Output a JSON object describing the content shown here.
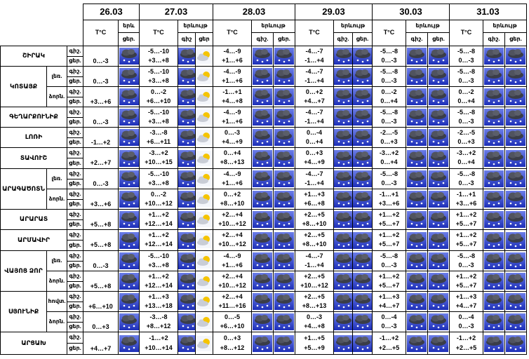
{
  "header": {
    "dates": [
      "26.03",
      "27.03",
      "28.03",
      "29.03",
      "30.03",
      "31.03"
    ],
    "temp_label": "T°C",
    "phenomenon": [
      "երև",
      "երևույթ",
      "երևույթ",
      "երևույթ",
      "երևույթ",
      "երևույթ"
    ],
    "icon_labels": [
      [
        "ցեր."
      ],
      [
        "գիշ",
        "ցեր"
      ],
      [
        "գիշ.",
        "ցեր."
      ],
      [
        "գիշ.",
        "ցեր."
      ],
      [
        "գիշ.",
        "ցեր."
      ],
      [
        "գիշ.",
        "ցեր."
      ]
    ]
  },
  "row_labels": [
    "գիշ.",
    "ցեր."
  ],
  "regions": [
    {
      "name": "ՇԻՐԱԿ",
      "zones": [
        {
          "today": "0…-3",
          "forecast": [
            [
              "-5…-10",
              "+3…+8"
            ],
            [
              "-4…-9",
              "+1…+6"
            ],
            [
              "-4…-7",
              "-1…+4"
            ],
            [
              "-5…-8",
              "0…-3"
            ],
            [
              "-5…-8",
              "0…-3"
            ]
          ]
        }
      ]
    },
    {
      "name": "ԿՈՏԱՅՔ",
      "zones": [
        {
          "label": "լեռ.",
          "today": "0…-3",
          "forecast": [
            [
              "-5…-10",
              "+3…+8"
            ],
            [
              "-4…-9",
              "+1…+6"
            ],
            [
              "-4…-7",
              "-1…+4"
            ],
            [
              "-5…-8",
              "0…-3"
            ],
            [
              "-5…-8",
              "0…-3"
            ]
          ]
        },
        {
          "label": "ձորն.",
          "today": "+3…+6",
          "forecast": [
            [
              "0…-2",
              "+6…+10"
            ],
            [
              "-1…+1",
              "+4…+8"
            ],
            [
              "0…+2",
              "+4…+7"
            ],
            [
              "0…-2",
              "0…+4"
            ],
            [
              "0…-2",
              "0…+4"
            ]
          ]
        }
      ]
    },
    {
      "name": "ԳԵՂԱՐՔՈՒՆԻՔ",
      "zones": [
        {
          "today": "0…-3",
          "forecast": [
            [
              "-5…-10",
              "+3…+8"
            ],
            [
              "-4…-9",
              "+1…+6"
            ],
            [
              "-4…-7",
              "-1…+4"
            ],
            [
              "-5…-8",
              "0…-3"
            ],
            [
              "-5…-8",
              "0…-3"
            ]
          ]
        }
      ]
    },
    {
      "name": "ԼՈՌԻ",
      "zones": [
        {
          "today": "-1…+2",
          "forecast": [
            [
              "-3…-8",
              "+6…+11"
            ],
            [
              "0…-3",
              "+4…+9"
            ],
            [
              "0…-4",
              "0…+4"
            ],
            [
              "-2…-5",
              "0…+3"
            ],
            [
              "-2…-5",
              "0…+3"
            ]
          ]
        }
      ]
    },
    {
      "name": "ՏԱՎՈՒՇ",
      "zones": [
        {
          "today": "+2…+7",
          "forecast": [
            [
              "-3…+2",
              "+10…+15"
            ],
            [
              "0…+4",
              "+8…+13"
            ],
            [
              "0…+3",
              "+4…+9"
            ],
            [
              "-3…+2",
              "0…+4"
            ],
            [
              "-3…+2",
              "0…+4"
            ]
          ]
        }
      ]
    },
    {
      "name": "ԱՐԱԳԱԾՈՏՆ",
      "zones": [
        {
          "label": "լեռ.",
          "today": "0…-3",
          "forecast": [
            [
              "-5…-10",
              "+3…+8"
            ],
            [
              "-4…-9",
              "+1…+6"
            ],
            [
              "-4…-7",
              "-1…+4"
            ],
            [
              "-5…-8",
              "0…-3"
            ],
            [
              "-5…-8",
              "0…-3"
            ]
          ]
        },
        {
          "label": "ձորն.",
          "today": "+3…+6",
          "forecast": [
            [
              "0…-2",
              "+10…+12"
            ],
            [
              "0…+2",
              "+8…+10"
            ],
            [
              "+1…+3",
              "+6…+8"
            ],
            [
              "-1…+1",
              "+3…+6"
            ],
            [
              "-1…+1",
              "+3…+6"
            ]
          ]
        }
      ]
    },
    {
      "name": "ԱՐԱՐԱՏ",
      "zones": [
        {
          "today": "+5…+8",
          "forecast": [
            [
              "+1…+2",
              "+12…+14"
            ],
            [
              "+2…+4",
              "+10…+12"
            ],
            [
              "+2…+5",
              "+8…+10"
            ],
            [
              "+1…+2",
              "+5…+7"
            ],
            [
              "+1…+2",
              "+5…+7"
            ]
          ]
        }
      ]
    },
    {
      "name": "ԱՐՄԱՎԻՐ",
      "zones": [
        {
          "today": "+5…+8",
          "forecast": [
            [
              "+1…+2",
              "+12…+14"
            ],
            [
              "+2…+4",
              "+10…+12"
            ],
            [
              "+2…+5",
              "+8…+10"
            ],
            [
              "+1…+2",
              "+5…+7"
            ],
            [
              "+1…+2",
              "+5…+7"
            ]
          ]
        }
      ]
    },
    {
      "name": "ՎԱՅՈՑ ՁՈՐ",
      "zones": [
        {
          "label": "լեռ.",
          "today": "0…-3",
          "forecast": [
            [
              "-5…-10",
              "+3…+8"
            ],
            [
              "-4…-9",
              "+1…+6"
            ],
            [
              "-4…-7",
              "-1…+4"
            ],
            [
              "-5…-8",
              "0…-3"
            ],
            [
              "-5…-8",
              "0…-3"
            ]
          ]
        },
        {
          "label": "ձորն.",
          "today": "+5…+8",
          "forecast": [
            [
              "+1…+2",
              "+12…+14"
            ],
            [
              "+2…+4",
              "+10…+12"
            ],
            [
              "+2…+5",
              "+10…+12"
            ],
            [
              "+1…+2",
              "+5…+7"
            ],
            [
              "+1…+2",
              "+5…+7"
            ]
          ]
        }
      ]
    },
    {
      "name": "ՍՅՈՒՆԻՔ",
      "zones": [
        {
          "label": "հովտ.",
          "today": "+6…+10",
          "forecast": [
            [
              "+1…+3",
              "+13…+18"
            ],
            [
              "+2…+4",
              "+11…+16"
            ],
            [
              "+2…+5",
              "+8…+13"
            ],
            [
              "+1…+3",
              "+4…+7"
            ],
            [
              "+1…+3",
              "+4…+7"
            ]
          ]
        },
        {
          "label": "ձորն.",
          "today": "0…+3",
          "forecast": [
            [
              "-3…-8",
              "+8…+12"
            ],
            [
              "0…-5",
              "+6…+10"
            ],
            [
              "0…-3",
              "+4…+8"
            ],
            [
              "0…-4",
              "0…-3"
            ],
            [
              "0…-4",
              "0…-3"
            ]
          ]
        }
      ]
    },
    {
      "name": "ԱՐՑԱԽ",
      "zones": [
        {
          "today": "+4…+7",
          "forecast": [
            [
              "-1…+2",
              "+10…+14"
            ],
            [
              "0…+3",
              "+8…+12"
            ],
            [
              "+1…+5",
              "+5…+9"
            ],
            [
              "-1…+2",
              "+2…+5"
            ],
            [
              "-1…+2",
              "+2…+5"
            ]
          ]
        }
      ]
    }
  ]
}
